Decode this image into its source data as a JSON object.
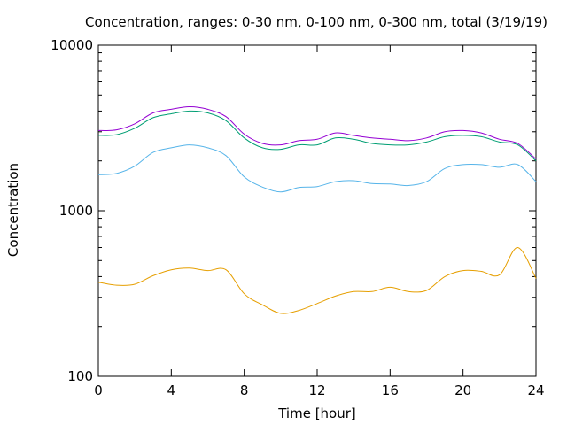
{
  "chart_data": {
    "type": "line",
    "title": "Concentration, ranges: 0-30 nm, 0-100 nm, 0-300 nm, total (3/19/19)",
    "xlabel": "Time [hour]",
    "ylabel": "Concentration",
    "xlim": [
      0,
      24
    ],
    "ylim": [
      100,
      10000
    ],
    "yscale": "log",
    "grid": false,
    "legend": "none",
    "x_ticks": [
      0,
      4,
      8,
      12,
      16,
      20,
      24
    ],
    "x_tick_labels": [
      "0",
      "4",
      "8",
      "12",
      "16",
      "20",
      "24"
    ],
    "y_major_ticks": [
      100,
      1000,
      10000
    ],
    "y_tick_labels": [
      "100",
      "1000",
      "10000"
    ],
    "x": [
      0,
      1,
      2,
      3,
      4,
      5,
      6,
      7,
      8,
      9,
      10,
      11,
      12,
      13,
      14,
      15,
      16,
      17,
      18,
      19,
      20,
      21,
      22,
      23,
      24
    ],
    "series": [
      {
        "color": "#e69f00",
        "values": [
          370,
          355,
          360,
          405,
          440,
          450,
          435,
          440,
          315,
          270,
          240,
          250,
          275,
          305,
          325,
          325,
          345,
          325,
          330,
          400,
          435,
          430,
          410,
          600,
          390
        ]
      },
      {
        "color": "#56b4e9",
        "values": [
          1650,
          1680,
          1860,
          2250,
          2400,
          2500,
          2400,
          2150,
          1600,
          1390,
          1300,
          1380,
          1400,
          1500,
          1520,
          1460,
          1450,
          1420,
          1500,
          1800,
          1900,
          1900,
          1830,
          1900,
          1500
        ]
      },
      {
        "color": "#009e73",
        "values": [
          2850,
          2880,
          3150,
          3650,
          3850,
          4000,
          3900,
          3500,
          2750,
          2400,
          2350,
          2500,
          2500,
          2750,
          2700,
          2550,
          2500,
          2500,
          2600,
          2800,
          2850,
          2800,
          2600,
          2500,
          2000
        ]
      },
      {
        "color": "#9400d3",
        "values": [
          3050,
          3080,
          3350,
          3900,
          4100,
          4250,
          4100,
          3700,
          2900,
          2550,
          2500,
          2650,
          2700,
          2950,
          2850,
          2750,
          2700,
          2650,
          2750,
          3000,
          3050,
          2950,
          2700,
          2550,
          2050
        ]
      }
    ]
  }
}
